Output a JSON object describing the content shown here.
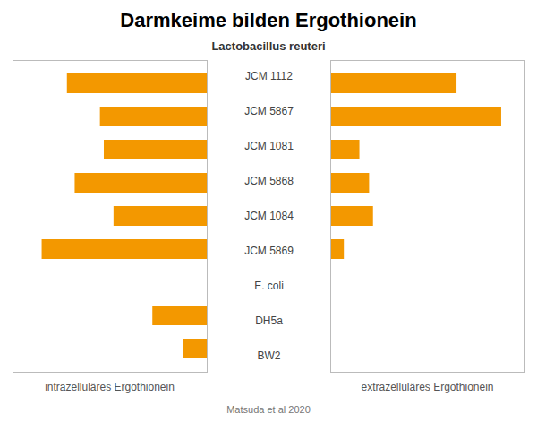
{
  "chart_data": [
    {
      "type": "bar",
      "orientation": "horizontal",
      "title": "Darmkeime bilden Ergothionein",
      "subtitle": "Lactobacillus reuteri",
      "annotations": [
        "Matsuda et al 2020"
      ],
      "categories": [
        "JCM 1112",
        "JCM 5867",
        "JCM 1081",
        "JCM 5868",
        "JCM 1084",
        "JCM 5869",
        "E. coli",
        "DH5a",
        "BW2"
      ],
      "values": [
        7.2,
        5.5,
        5.3,
        6.8,
        4.8,
        8.5,
        0,
        2.8,
        1.2
      ],
      "color": "#f39800",
      "xlabel": "intrazelluläres Ergothionein",
      "xlim": [
        10.0,
        0
      ],
      "tick_labels": false
    },
    {
      "type": "bar",
      "orientation": "horizontal",
      "categories": [
        "JCM 1112",
        "JCM 5867",
        "JCM 1081",
        "JCM 5868",
        "JCM 1084",
        "JCM 5869",
        "E. coli",
        "DH5a",
        "BW2"
      ],
      "values": [
        6.5,
        8.8,
        1.5,
        2.0,
        2.2,
        0.7,
        0,
        0,
        0
      ],
      "color": "#f39800",
      "xlabel": "extrazelluläres Ergothionein",
      "xlim": [
        0,
        10.0
      ],
      "tick_labels": false
    }
  ]
}
